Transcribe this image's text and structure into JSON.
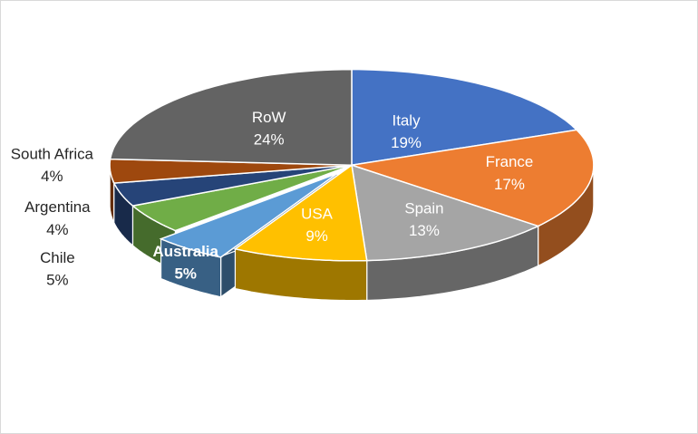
{
  "chart_data": {
    "type": "pie",
    "style": "3d-exploded",
    "categories": [
      "Italy",
      "France",
      "Spain",
      "USA",
      "Australia",
      "Chile",
      "Argentina",
      "South Africa",
      "RoW"
    ],
    "values": [
      19,
      17,
      13,
      9,
      5,
      5,
      4,
      4,
      24
    ],
    "value_labels": [
      "19%",
      "17%",
      "13%",
      "9%",
      "5%",
      "5%",
      "4%",
      "4%",
      "24%"
    ],
    "colors": [
      "#4472C4",
      "#ED7D31",
      "#A5A5A5",
      "#FFC000",
      "#5B9BD5",
      "#70AD47",
      "#264478",
      "#9E480E",
      "#636363"
    ],
    "label_colors": [
      "#ffffff",
      "#ffffff",
      "#ffffff",
      "#ffffff",
      "#ffffff",
      "#262626",
      "#262626",
      "#262626",
      "#ffffff"
    ],
    "exploded": [
      "Australia"
    ],
    "legend": "none"
  }
}
